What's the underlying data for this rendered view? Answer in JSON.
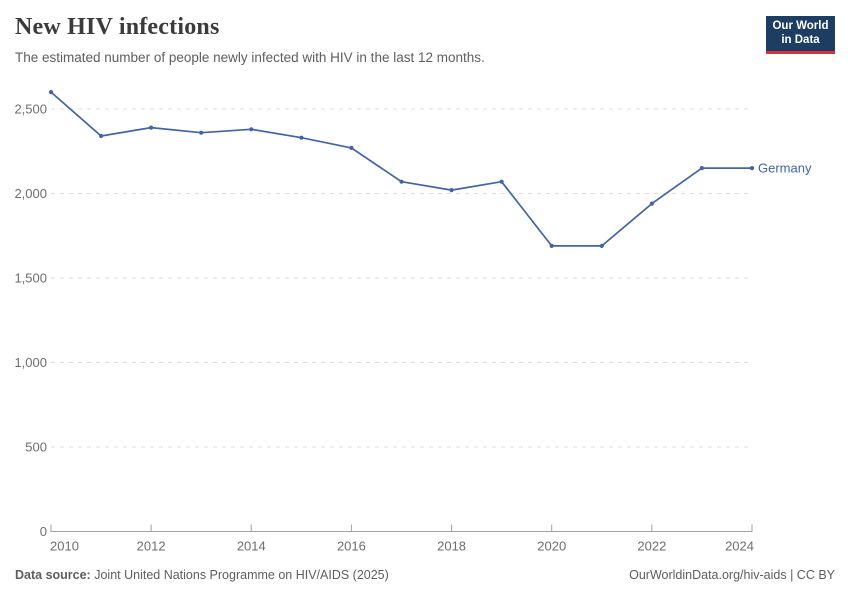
{
  "header": {
    "title": "New HIV infections",
    "subtitle": "The estimated number of people newly infected with HIV in the last 12 months.",
    "logo_line1": "Our World",
    "logo_line2": "in Data"
  },
  "chart_data": {
    "type": "line",
    "title": "New HIV infections",
    "x": [
      2010,
      2011,
      2012,
      2013,
      2014,
      2015,
      2016,
      2017,
      2018,
      2019,
      2020,
      2021,
      2022,
      2023,
      2024
    ],
    "series": [
      {
        "name": "Germany",
        "color": "#4063a9",
        "values": [
          2600,
          2340,
          2390,
          2360,
          2380,
          2330,
          2270,
          2070,
          2020,
          2070,
          1690,
          1690,
          1940,
          2150,
          2150
        ]
      }
    ],
    "xlabel": "",
    "ylabel": "",
    "xlim": [
      2010,
      2024
    ],
    "ylim": [
      0,
      2600
    ],
    "xticks": [
      2010,
      2012,
      2014,
      2016,
      2018,
      2020,
      2022,
      2024
    ],
    "yticks": [
      0,
      500,
      1000,
      1500,
      2000,
      2500
    ],
    "ytick_labels": [
      "0",
      "500",
      "1,000",
      "1,500",
      "2,000",
      "2,500"
    ],
    "grid": "horizontal-dashed",
    "legend_position": "end-of-line",
    "markers": true
  },
  "footer": {
    "source_label": "Data source:",
    "source_text": "Joint United Nations Programme on HIV/AIDS (2025)",
    "attribution": "OurWorldinData.org/hiv-aids | CC BY"
  },
  "colors": {
    "line": "#4063a9",
    "grid": "#dcdcdc",
    "axis": "#a1a1a1",
    "tick_text": "#6e6e6e",
    "title_text": "#3b3b3b",
    "subtitle_text": "#5e5e5e",
    "logo_bg": "#1d3d63",
    "logo_accent": "#d1353b"
  }
}
